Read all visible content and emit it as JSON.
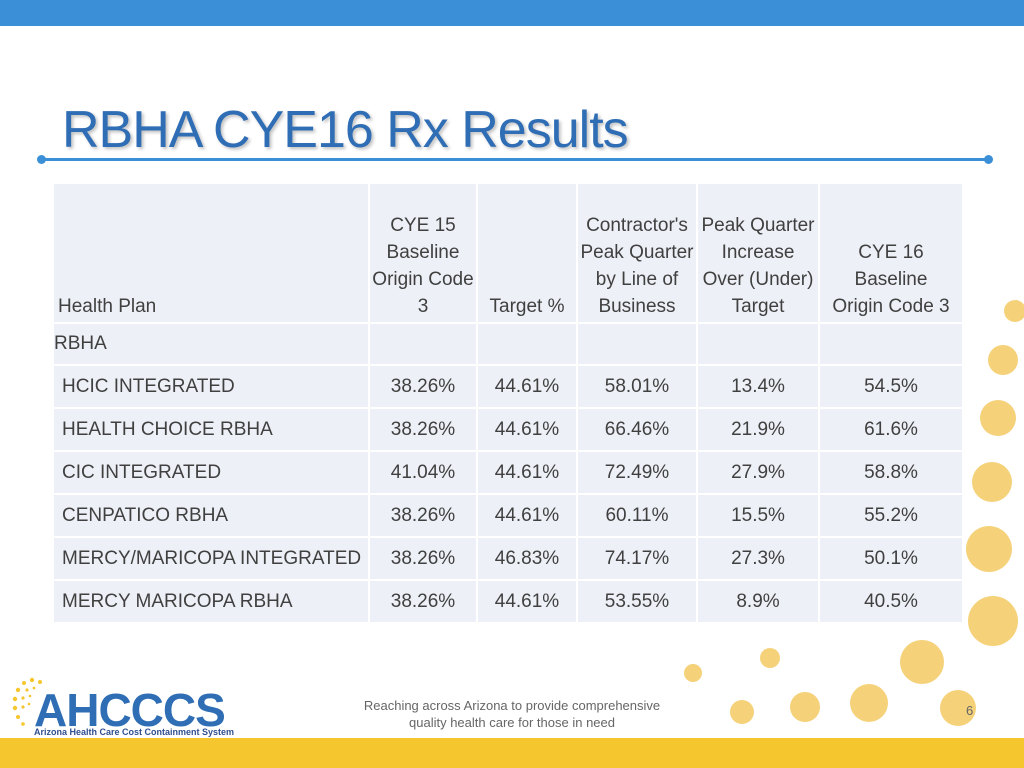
{
  "slide": {
    "title": "RBHA CYE16 Rx Results",
    "footer": {
      "line1": "Reaching across Arizona to provide comprehensive",
      "line2": "quality health care for those in need"
    },
    "page_number": "6",
    "logo": {
      "name": "AHCCCS",
      "subtitle": "Arizona Health Care Cost Containment System"
    },
    "colors": {
      "accent": "#3a8fd6",
      "title": "#2f6db5",
      "footer_bar": "#f5c62d",
      "table_bg": "#edf0f6"
    }
  },
  "table": {
    "headers": {
      "plan": "Health Plan",
      "baseline15": [
        "CYE 15",
        "Baseline",
        "Origin Code",
        "3"
      ],
      "target": "Target %",
      "peak": [
        "Contractor's",
        "Peak Quarter",
        "by Line of",
        "Business"
      ],
      "increase": [
        "Peak Quarter",
        "Increase",
        "Over (Under)",
        "Target"
      ],
      "baseline16": [
        "CYE 16",
        "Baseline",
        "Origin Code 3"
      ]
    },
    "group_label": "RBHA",
    "rows": [
      {
        "plan": "HCIC INTEGRATED",
        "baseline15": "38.26%",
        "target": "44.61%",
        "peak": "58.01%",
        "increase": "13.4%",
        "baseline16": "54.5%"
      },
      {
        "plan": "HEALTH CHOICE RBHA",
        "baseline15": "38.26%",
        "target": "44.61%",
        "peak": "66.46%",
        "increase": "21.9%",
        "baseline16": "61.6%"
      },
      {
        "plan": "CIC INTEGRATED",
        "baseline15": "41.04%",
        "target": "44.61%",
        "peak": "72.49%",
        "increase": "27.9%",
        "baseline16": "58.8%"
      },
      {
        "plan": "CENPATICO RBHA",
        "baseline15": "38.26%",
        "target": "44.61%",
        "peak": "60.11%",
        "increase": "15.5%",
        "baseline16": "55.2%"
      },
      {
        "plan": "MERCY/MARICOPA INTEGRATED",
        "baseline15": "38.26%",
        "target": "46.83%",
        "peak": "74.17%",
        "increase": "27.3%",
        "baseline16": "50.1%"
      },
      {
        "plan": "MERCY MARICOPA RBHA",
        "baseline15": "38.26%",
        "target": "44.61%",
        "peak": "53.55%",
        "increase": "8.9%",
        "baseline16": "40.5%"
      }
    ]
  }
}
